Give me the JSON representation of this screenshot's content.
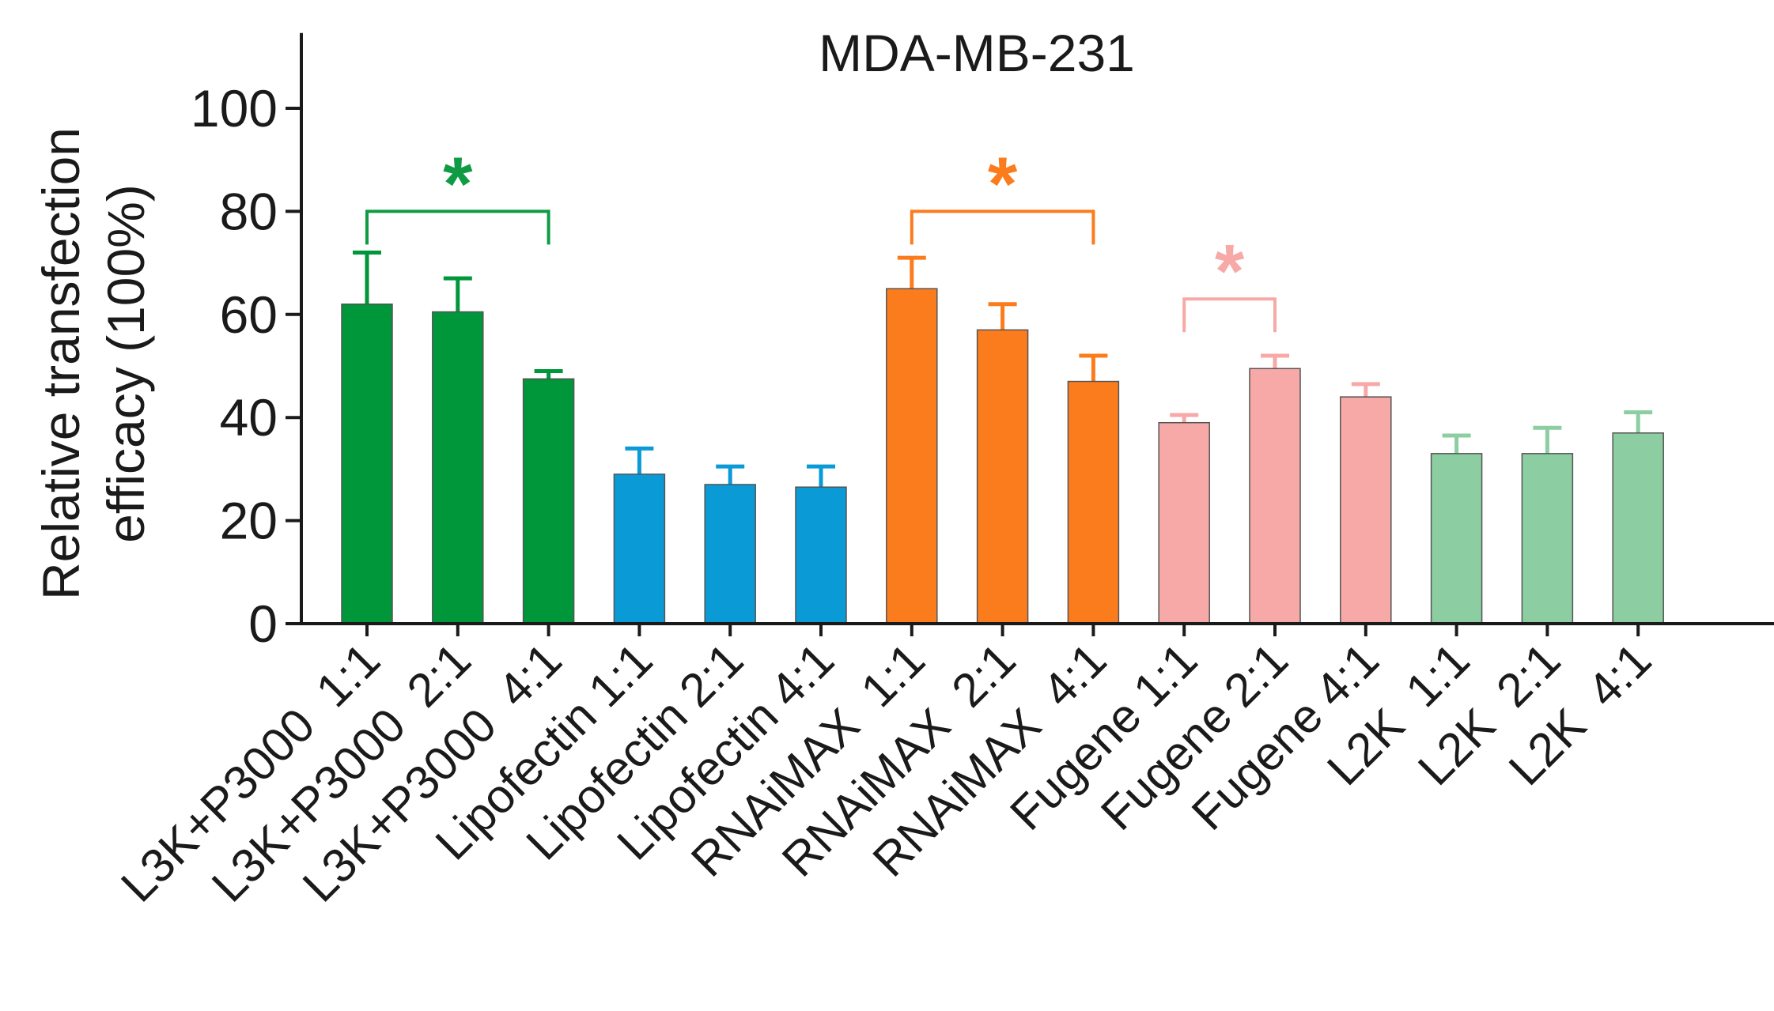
{
  "chart_data": {
    "type": "bar",
    "title": "MDA-MB-231",
    "xlabel": "",
    "ylabel_lines": [
      "Relative transfection",
      "efficacy (100%)"
    ],
    "ylim": [
      0,
      110
    ],
    "yticks": [
      0,
      20,
      40,
      60,
      80,
      100
    ],
    "grid": false,
    "categories": [
      "L3K+P3000  1:1",
      "L3K+P3000  2:1",
      "L3K+P3000  4:1",
      "Lipofectin 1:1",
      "Lipofectin 2:1",
      "Lipofectin 4:1",
      "RNAiMAX  1:1",
      "RNAiMAX  2:1",
      "RNAiMAX  4:1",
      "Fugene 1:1",
      "Fugene 2:1",
      "Fugene 4:1",
      "L2K  1:1",
      "L2K  2:1",
      "L2K  4:1"
    ],
    "values": [
      62,
      60.5,
      47.5,
      29,
      27,
      26.5,
      65,
      57,
      47,
      39,
      49.5,
      44,
      33,
      33,
      37
    ],
    "errors": [
      10,
      6.5,
      1.5,
      5,
      3.5,
      4,
      6,
      5,
      5,
      1.5,
      2.5,
      2.5,
      3.5,
      5,
      4
    ],
    "bar_colors": [
      "#00963a",
      "#00963a",
      "#00963a",
      "#0a9ad6",
      "#0a9ad6",
      "#0a9ad6",
      "#fb7c1d",
      "#fb7c1d",
      "#fb7c1d",
      "#f7a9a7",
      "#f7a9a7",
      "#f7a9a7",
      "#8ccea1",
      "#8ccea1",
      "#8ccea1"
    ],
    "significance": [
      {
        "from": 0,
        "to": 2,
        "level": 80,
        "label": "*",
        "color": "#0f9b43"
      },
      {
        "from": 6,
        "to": 8,
        "level": 80,
        "label": "*",
        "color": "#fb7c1d"
      },
      {
        "from": 9,
        "to": 10,
        "level": 63,
        "label": "*",
        "color": "#f7a9a7"
      }
    ]
  }
}
